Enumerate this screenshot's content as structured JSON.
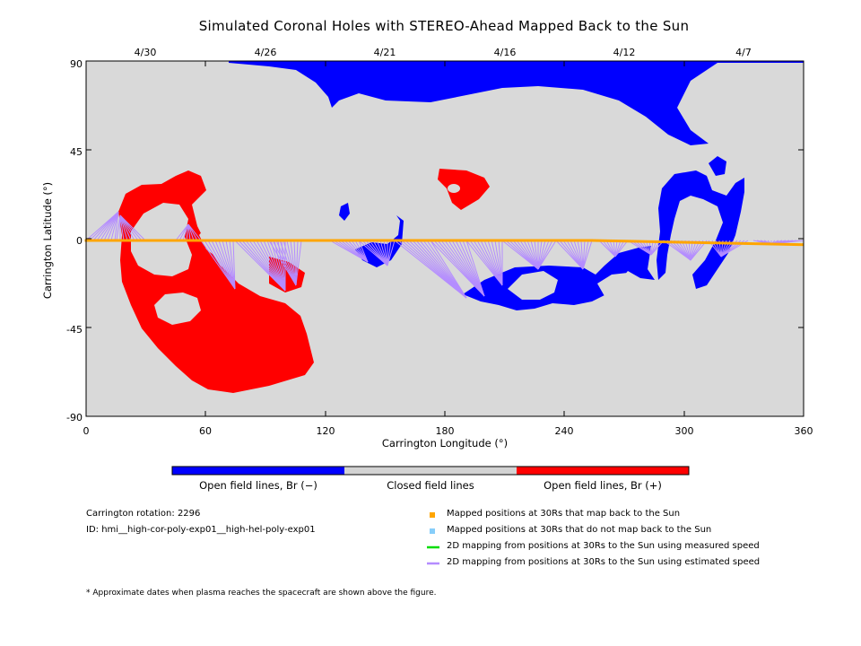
{
  "title": "Simulated Coronal Holes with STEREO-Ahead Mapped Back to the Sun",
  "map": {
    "x_axis": {
      "label": "Carrington Longitude (°)",
      "range": [
        0,
        360
      ],
      "ticks": [
        "0",
        "60",
        "120",
        "180",
        "240",
        "300",
        "360"
      ]
    },
    "y_axis": {
      "label": "Carrington Latitude (°)",
      "range": [
        -90,
        90
      ],
      "ticks": [
        "90",
        "45",
        "0",
        "-45",
        "-90"
      ]
    },
    "top_dates": [
      "4/30",
      "4/26",
      "4/21",
      "4/16",
      "4/12",
      "4/7"
    ],
    "colors": {
      "background": "#d9d9d9",
      "open_negative": "#0000ff",
      "open_positive": "#ff0000",
      "closed": "#d3d3d3",
      "mapped_back": "#ffa500",
      "not_mapped": "#87cefa",
      "measured_speed": "#00dd00",
      "estimated_speed": "#b48cff"
    }
  },
  "colorbar": {
    "labels": [
      "Open field lines, Br (−)",
      "Closed field lines",
      "Open field lines, Br (+)"
    ]
  },
  "info": {
    "rotation": "Carrington rotation: 2296",
    "id": "ID: hmi__high-cor-poly-exp01__high-hel-poly-exp01"
  },
  "legend": [
    "Mapped positions at 30Rs that map back to the Sun",
    "Mapped positions at 30Rs that do not map back to the Sun",
    "2D mapping from positions at 30Rs to the Sun using measured speed",
    "2D mapping from positions at 30Rs to the Sun using estimated speed"
  ],
  "footnote": "* Approximate dates when plasma reaches the spacecraft are shown above the figure."
}
